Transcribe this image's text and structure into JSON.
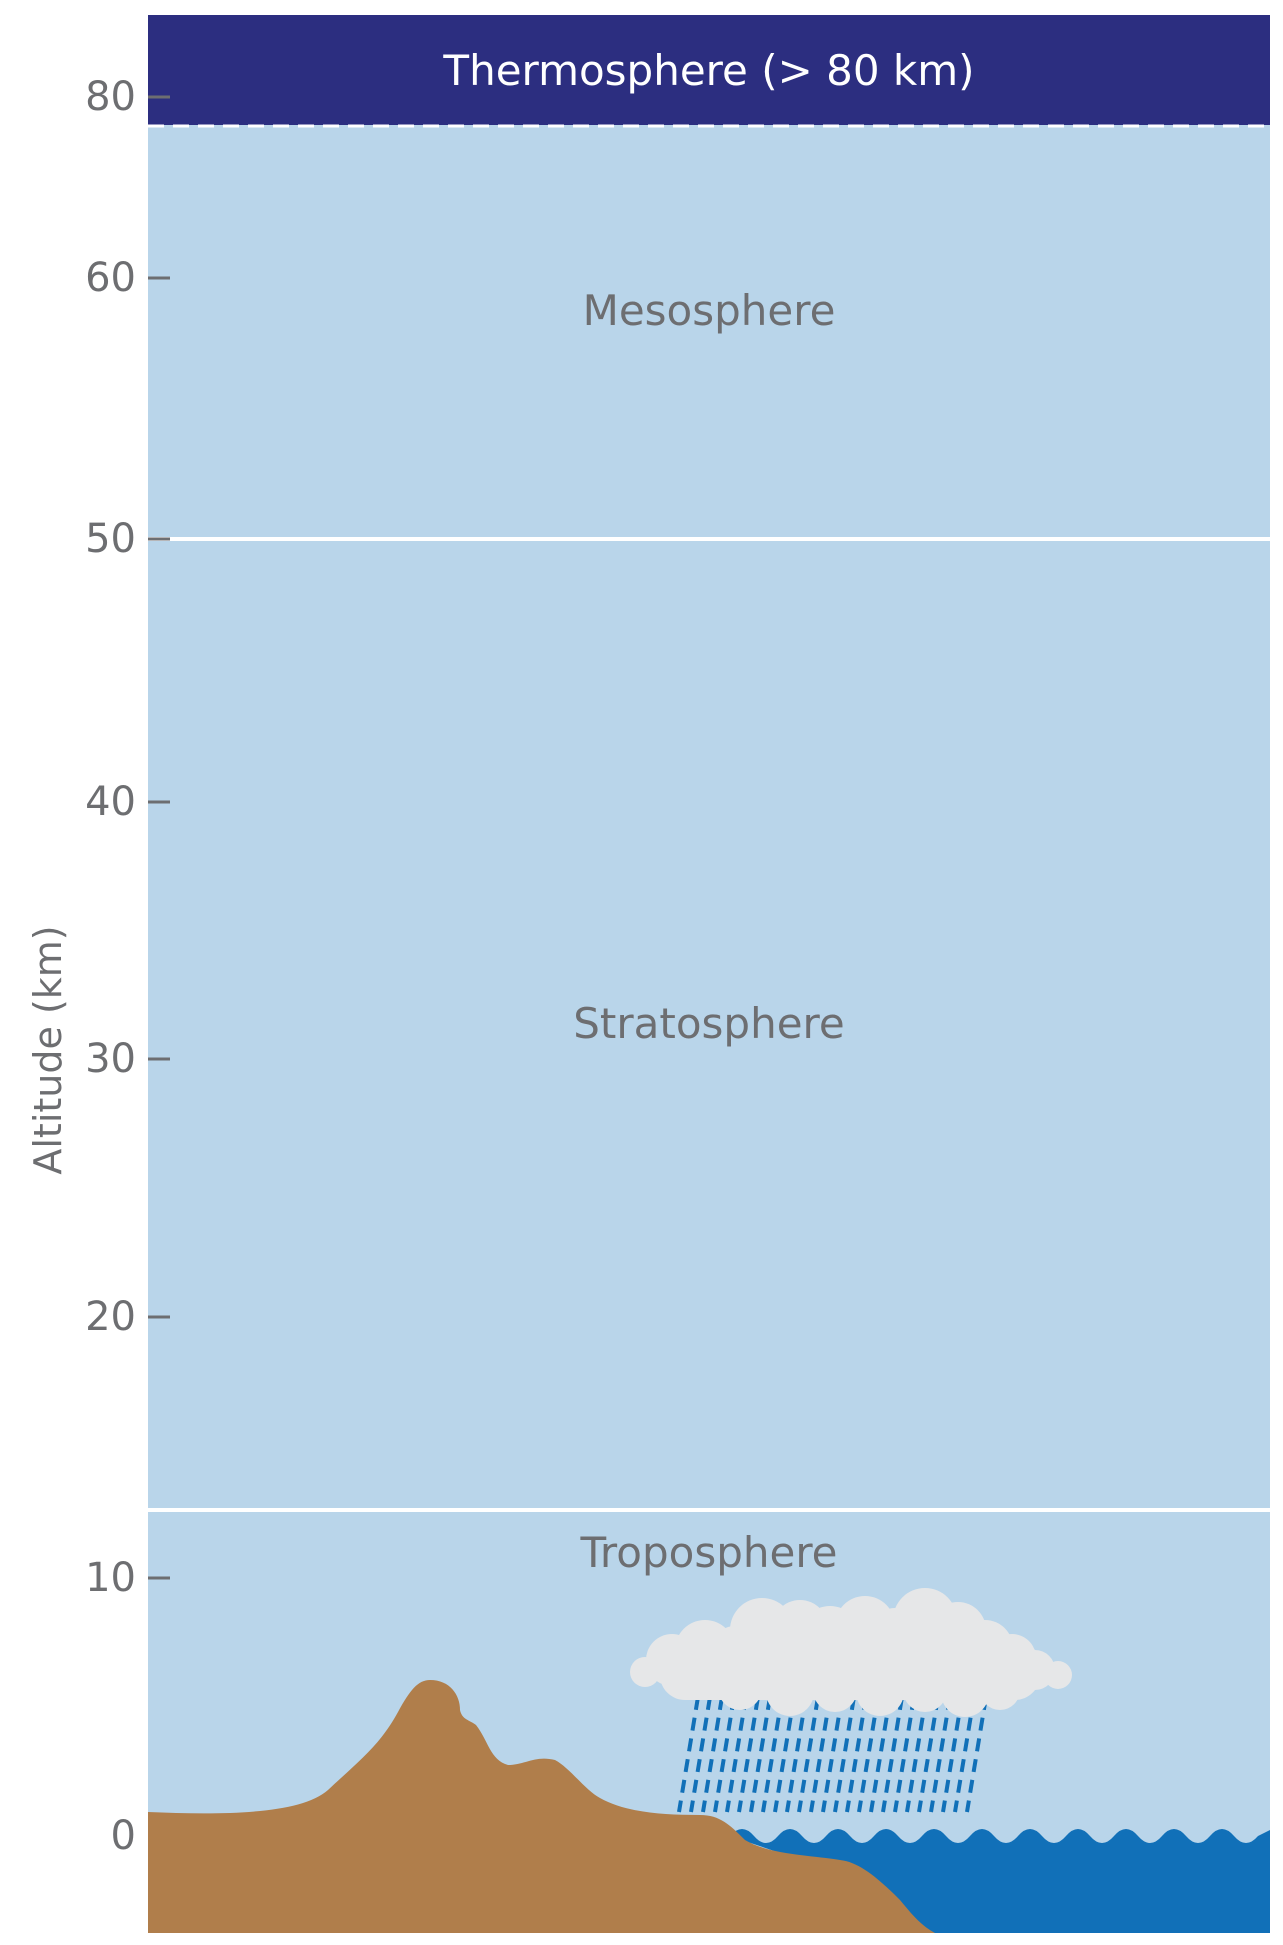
{
  "axis": {
    "label": "Altitude (km)",
    "ticks": [
      {
        "value": 0,
        "label": "0"
      },
      {
        "value": 10,
        "label": "10"
      },
      {
        "value": 20,
        "label": "20"
      },
      {
        "value": 30,
        "label": "30"
      },
      {
        "value": 40,
        "label": "40"
      },
      {
        "value": 50,
        "label": "50"
      },
      {
        "value": 60,
        "label": "60"
      },
      {
        "value": 80,
        "label": "80"
      }
    ]
  },
  "layers": {
    "thermosphere": "Thermosphere (> 80 km)",
    "mesosphere": "Mesosphere",
    "stratosphere": "Stratosphere",
    "troposphere": "Troposphere"
  },
  "colors": {
    "sky": "#b9d5ea",
    "thermosphere": "#2c2e80",
    "land": "#b07e4b",
    "ocean": "#1170b8",
    "cloud": "#e6e7e8",
    "rain": "#1170b8",
    "text": "#6d6e71"
  }
}
